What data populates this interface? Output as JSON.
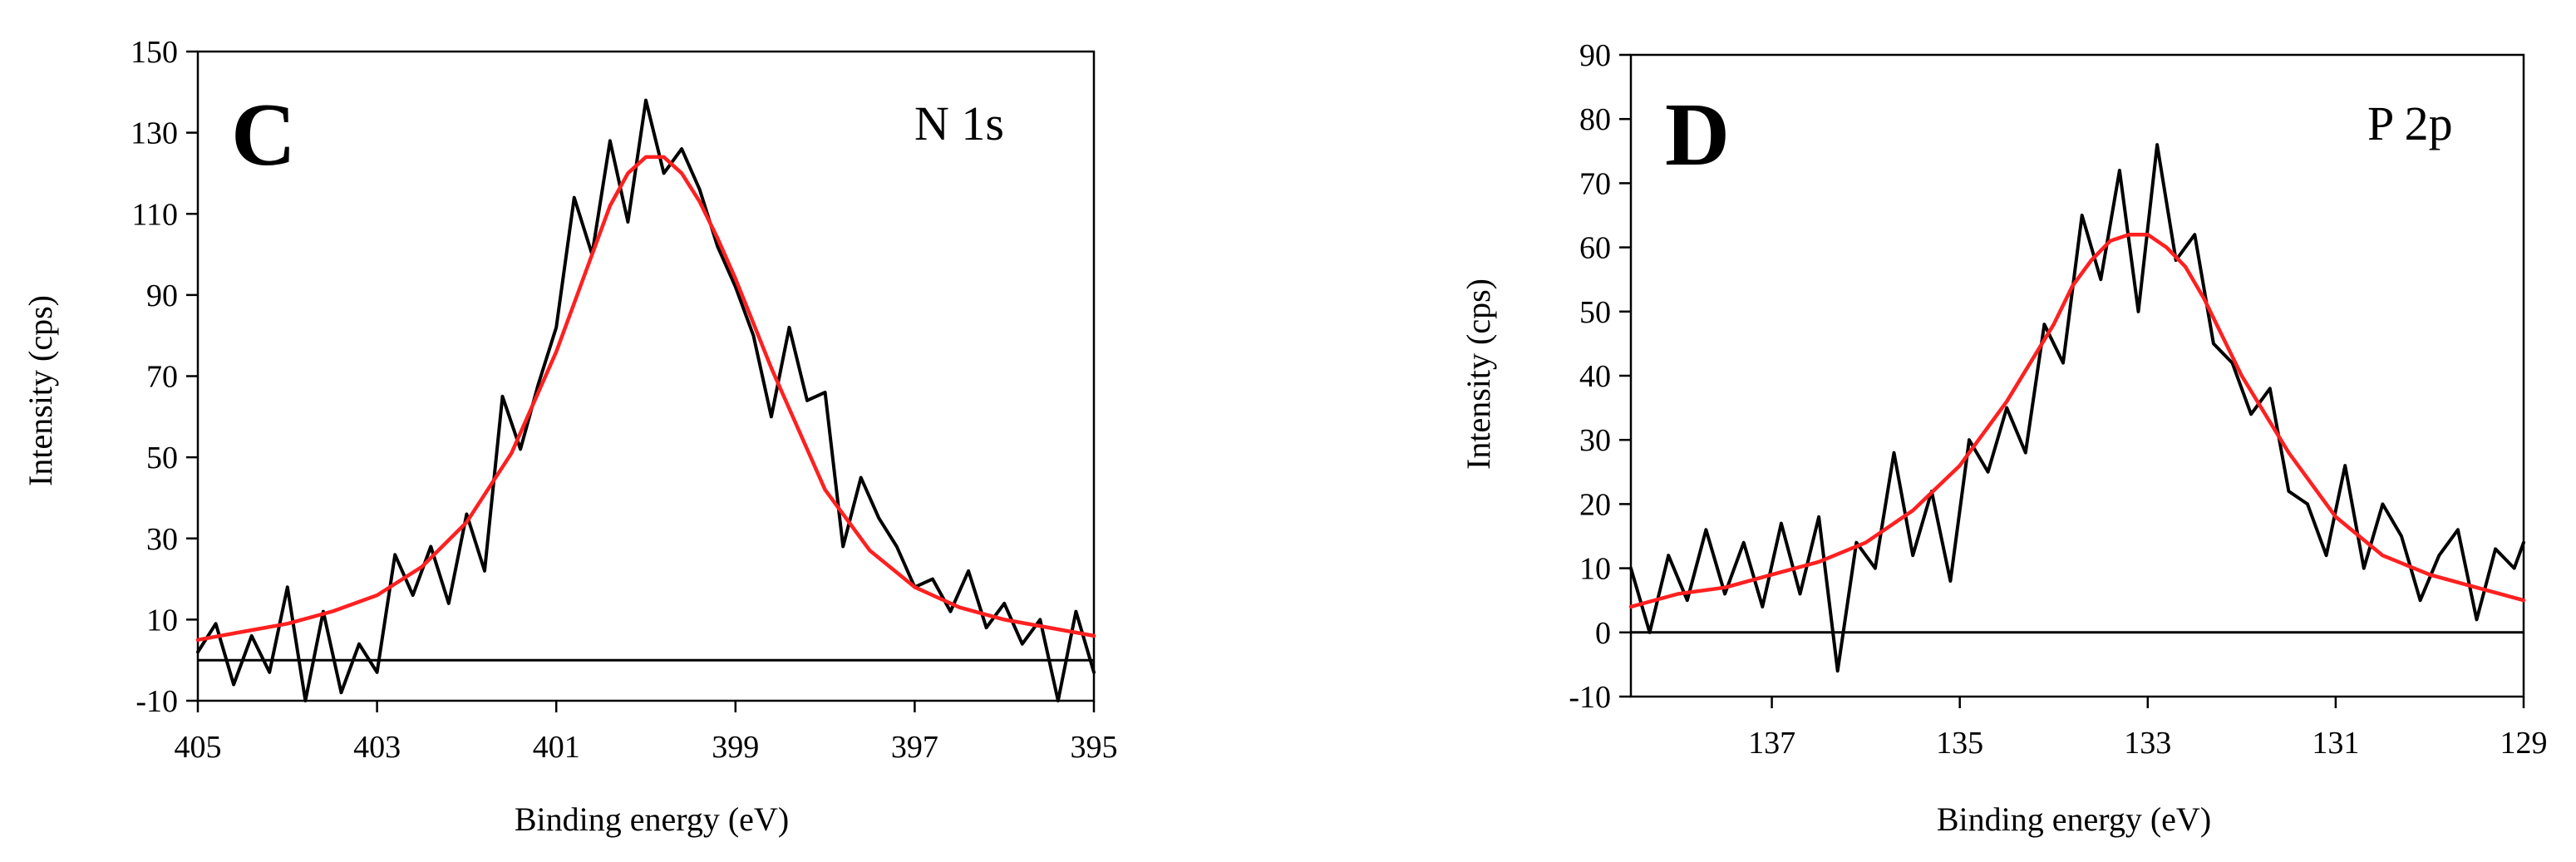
{
  "chart_data": [
    {
      "type": "line",
      "panel_label": "C",
      "annotation": "N 1s",
      "xlabel": "Binding energy (eV)",
      "ylabel": "Intensity (cps)",
      "x_reversed": true,
      "xlim": [
        405,
        395
      ],
      "ylim": [
        -10,
        150
      ],
      "xticks": [
        405,
        403,
        401,
        399,
        397,
        395
      ],
      "yticks": [
        -10,
        10,
        30,
        50,
        70,
        90,
        110,
        130,
        150
      ],
      "grid": false,
      "series": [
        {
          "color": "#000000",
          "x": [
            405,
            404.8,
            404.6,
            404.4,
            404.2,
            404.0,
            403.8,
            403.6,
            403.4,
            403.2,
            403.0,
            402.8,
            402.6,
            402.4,
            402.2,
            402.0,
            401.8,
            401.6,
            401.4,
            401.2,
            401.0,
            400.8,
            400.6,
            400.4,
            400.2,
            400.0,
            399.8,
            399.6,
            399.4,
            399.2,
            399.0,
            398.8,
            398.6,
            398.4,
            398.2,
            398.0,
            397.8,
            397.6,
            397.4,
            397.2,
            397.0,
            396.8,
            396.6,
            396.4,
            396.2,
            396.0,
            395.8,
            395.6,
            395.4,
            395.2,
            395.0
          ],
          "y": [
            2,
            9,
            -6,
            6,
            -3,
            18,
            -10,
            12,
            -8,
            4,
            -3,
            26,
            16,
            28,
            14,
            36,
            22,
            65,
            52,
            68,
            82,
            114,
            100,
            128,
            108,
            138,
            120,
            126,
            116,
            102,
            92,
            80,
            60,
            82,
            64,
            66,
            28,
            45,
            35,
            28,
            18,
            20,
            12,
            22,
            8,
            14,
            4,
            10,
            -10,
            12,
            -3
          ]
        },
        {
          "color": "#ff2020",
          "x": [
            405,
            404.5,
            404.0,
            403.5,
            403.0,
            402.5,
            402.0,
            401.5,
            401.0,
            400.8,
            400.6,
            400.4,
            400.2,
            400.0,
            399.8,
            399.6,
            399.4,
            399.2,
            399.0,
            398.8,
            398.6,
            398.4,
            398.2,
            398.0,
            397.5,
            397.0,
            396.5,
            396.0,
            395.5,
            395.0
          ],
          "y": [
            5,
            7,
            9,
            12,
            16,
            23,
            34,
            51,
            76,
            88,
            100,
            112,
            120,
            124,
            124,
            120,
            113,
            104,
            94,
            83,
            72,
            62,
            52,
            42,
            27,
            18,
            13,
            10,
            8,
            6
          ]
        }
      ]
    },
    {
      "type": "line",
      "panel_label": "D",
      "annotation": "P 2p",
      "xlabel": "Binding energy (eV)",
      "ylabel": "Intensity (cps)",
      "x_reversed": true,
      "xlim": [
        138.5,
        129
      ],
      "ylim": [
        -10,
        90
      ],
      "xticks": [
        137,
        135,
        133,
        131,
        129
      ],
      "yticks": [
        -10,
        0,
        10,
        20,
        30,
        40,
        50,
        60,
        70,
        80,
        90
      ],
      "grid": false,
      "series": [
        {
          "color": "#000000",
          "x": [
            138.5,
            138.3,
            138.1,
            137.9,
            137.7,
            137.5,
            137.3,
            137.1,
            136.9,
            136.7,
            136.5,
            136.3,
            136.1,
            135.9,
            135.7,
            135.5,
            135.3,
            135.1,
            134.9,
            134.7,
            134.5,
            134.3,
            134.1,
            133.9,
            133.7,
            133.5,
            133.3,
            133.1,
            132.9,
            132.7,
            132.5,
            132.3,
            132.1,
            131.9,
            131.7,
            131.5,
            131.3,
            131.1,
            130.9,
            130.7,
            130.5,
            130.3,
            130.1,
            129.9,
            129.7,
            129.5,
            129.3,
            129.1,
            129.0
          ],
          "y": [
            10,
            0,
            12,
            5,
            16,
            6,
            14,
            4,
            17,
            6,
            18,
            -6,
            14,
            10,
            28,
            12,
            22,
            8,
            30,
            25,
            35,
            28,
            48,
            42,
            65,
            55,
            72,
            50,
            76,
            58,
            62,
            45,
            42,
            34,
            38,
            22,
            20,
            12,
            26,
            10,
            20,
            15,
            5,
            12,
            16,
            2,
            13,
            10,
            14
          ]
        },
        {
          "color": "#ff2020",
          "x": [
            138.5,
            138.0,
            137.5,
            137.0,
            136.5,
            136.0,
            135.5,
            135.0,
            134.5,
            134.0,
            133.8,
            133.6,
            133.4,
            133.2,
            133.0,
            132.8,
            132.6,
            132.4,
            132.2,
            132.0,
            131.5,
            131.0,
            130.5,
            130.0,
            129.5,
            129.0
          ],
          "y": [
            4,
            6,
            7,
            9,
            11,
            14,
            19,
            26,
            36,
            48,
            54,
            58,
            61,
            62,
            62,
            60,
            57,
            52,
            46,
            40,
            28,
            18,
            12,
            9,
            7,
            5
          ]
        }
      ]
    }
  ]
}
